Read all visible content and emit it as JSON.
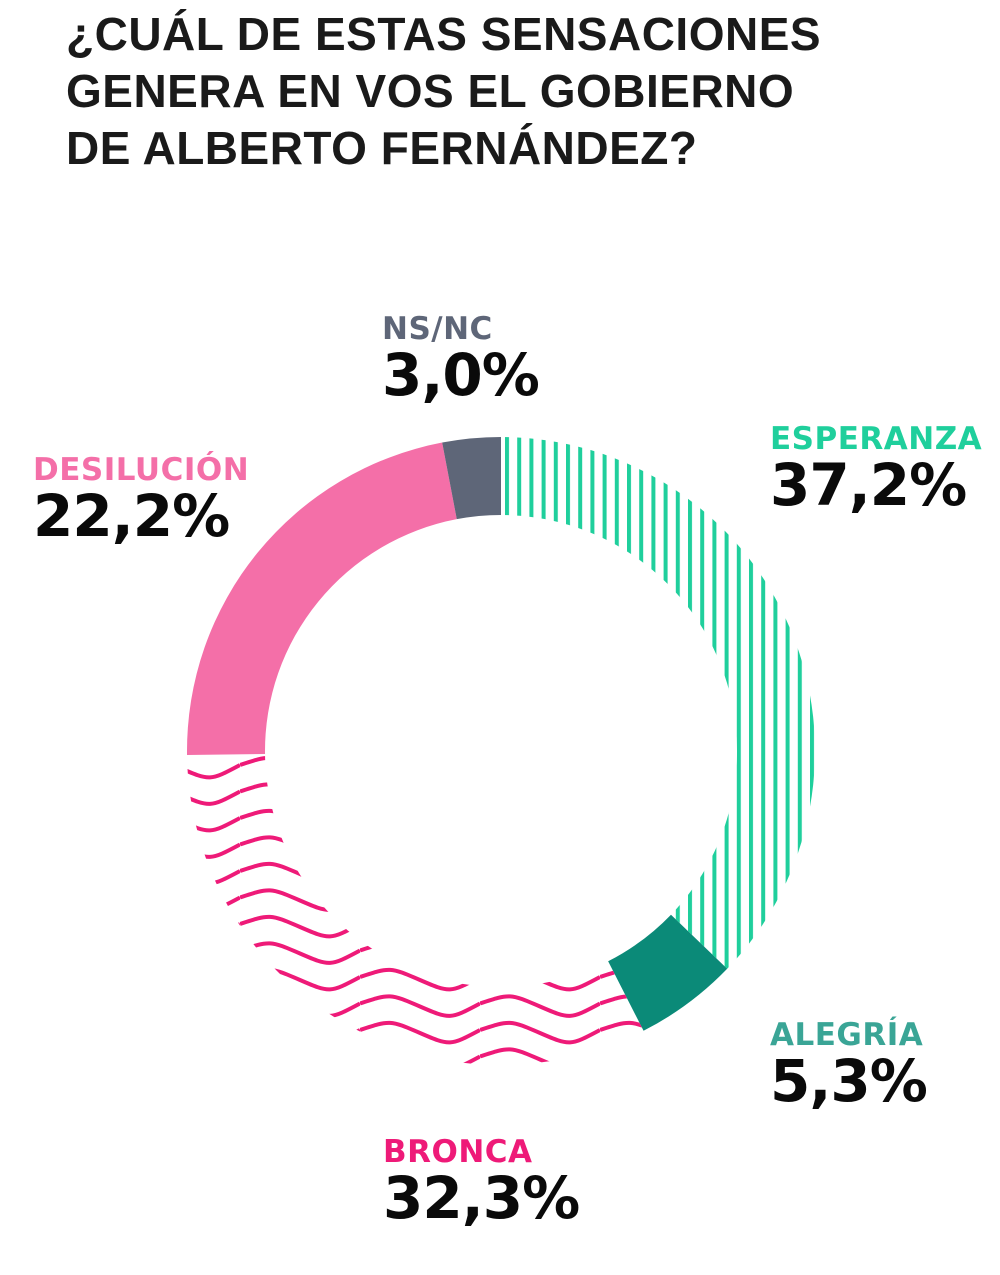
{
  "title": {
    "lines": [
      "¿CUÁL DE ESTAS SENSACIONES",
      "GENERA EN VOS EL GOBIERNO",
      "DE ALBERTO FERNÁNDEZ?"
    ]
  },
  "labels": {
    "nsnc": {
      "name": "NS/NC",
      "value": "3,0%"
    },
    "esperanza": {
      "name": "ESPERANZA",
      "value": "37,2%"
    },
    "desilucion": {
      "name": "DESILUCIÓN",
      "value": "22,2%"
    },
    "alegria": {
      "name": "ALEGRÍA",
      "value": "5,3%"
    },
    "bronca": {
      "name": "BRONCA",
      "value": "32,3%"
    }
  },
  "colors": {
    "esperanza": "#1fcf9c",
    "alegria": "#0b8a78",
    "bronca": "#ee1a78",
    "desilucion": "#f46fa8",
    "nsnc": "#5e6678",
    "alegria_label": "#3aa596",
    "nsnc_label": "#5e6678"
  },
  "chart_data": {
    "type": "pie",
    "subtype": "donut",
    "title": "¿CUÁL DE ESTAS SENSACIONES GENERA EN VOS EL GOBIERNO DE ALBERTO FERNÁNDEZ?",
    "categories": [
      "Esperanza",
      "Alegría",
      "Bronca",
      "Desilución",
      "NS/NC"
    ],
    "values": [
      37.2,
      5.3,
      32.3,
      22.2,
      3.0
    ],
    "unit": "%",
    "colors": [
      "#1fcf9c",
      "#0b8a78",
      "#ee1a78",
      "#f46fa8",
      "#5e6678"
    ],
    "patterns": [
      "vertical-stripes",
      "solid",
      "waves",
      "solid",
      "solid"
    ],
    "start_angle": "top, clockwise",
    "legend": "inline labels"
  }
}
